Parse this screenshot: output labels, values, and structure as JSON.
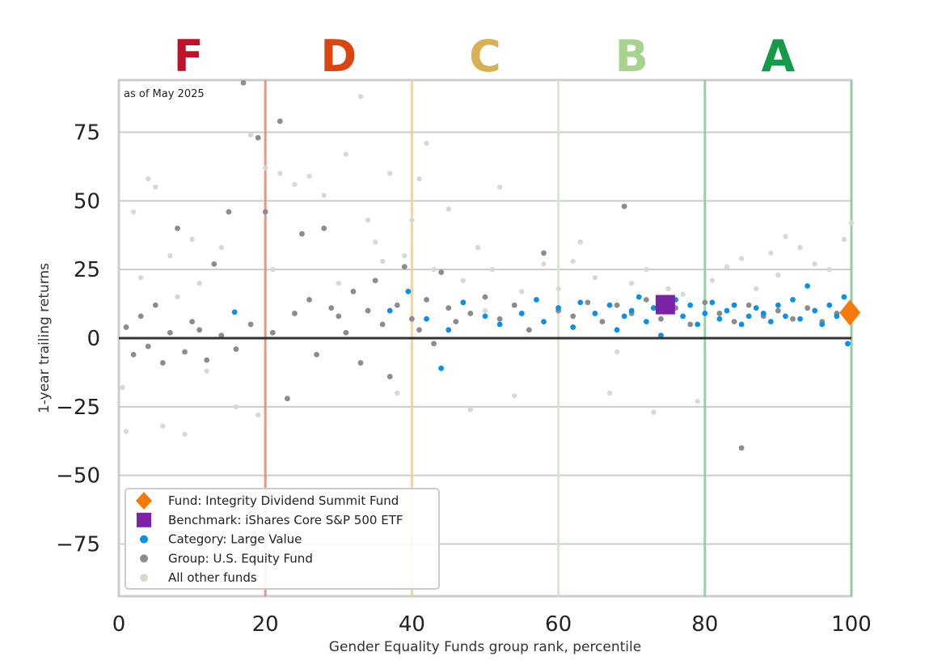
{
  "chart_data": {
    "type": "scatter",
    "title": "",
    "annotation": "as of May 2025",
    "xlabel": "Gender Equality Funds group rank, percentile",
    "ylabel": "1-year trailing returns",
    "xlim": [
      0,
      100
    ],
    "ylim": [
      -94,
      94
    ],
    "x_ticks": [
      0,
      20,
      40,
      60,
      80,
      100
    ],
    "y_ticks": [
      75,
      50,
      25,
      0,
      -25,
      -50,
      -75
    ],
    "y_tick_labels": [
      "75",
      "50",
      "25",
      "0",
      "−25",
      "−50",
      "−75"
    ],
    "grid": "horizontal",
    "zero_line": true,
    "grade_bands": [
      {
        "label": "F",
        "center": 9.5,
        "boundary": 20,
        "color": "#c0102a",
        "line_color": "#ee8a6c"
      },
      {
        "label": "D",
        "center": 30,
        "boundary": 40,
        "color": "#d9470f",
        "line_color": "#efd09a"
      },
      {
        "label": "C",
        "center": 50,
        "boundary": 60,
        "color": "#d8b155",
        "line_color": "#d3e8c8"
      },
      {
        "label": "B",
        "center": 70,
        "boundary": 80,
        "color": "#a6d48c",
        "line_color": "#8ccc9c"
      },
      {
        "label": "A",
        "center": 90,
        "boundary": 100,
        "color": "#159a48",
        "line_color": "#8ccc9c"
      }
    ],
    "series": [
      {
        "name": "Fund: Integrity Dividend Summit Fund",
        "marker": "diamond",
        "color": "#f57a0a",
        "points": [
          [
            99.8,
            9.3
          ]
        ]
      },
      {
        "name": "Benchmark: iShares Core S&P 500 ETF",
        "marker": "square",
        "color": "#7b22a6",
        "points": [
          [
            74.6,
            12.2
          ]
        ]
      },
      {
        "name": "Category: Large Value",
        "marker": "circle",
        "color": "#0a90e6",
        "points": [
          [
            15.8,
            9.5
          ],
          [
            37,
            10
          ],
          [
            39.5,
            17
          ],
          [
            42,
            7
          ],
          [
            44,
            -11
          ],
          [
            45,
            3
          ],
          [
            47,
            13
          ],
          [
            50,
            8
          ],
          [
            52,
            5
          ],
          [
            55,
            9
          ],
          [
            57,
            14
          ],
          [
            58,
            6
          ],
          [
            60,
            11
          ],
          [
            62,
            4
          ],
          [
            63,
            13
          ],
          [
            65,
            9
          ],
          [
            67,
            12
          ],
          [
            68,
            3
          ],
          [
            69,
            8
          ],
          [
            70,
            10
          ],
          [
            71,
            15
          ],
          [
            72,
            6
          ],
          [
            73,
            11
          ],
          [
            74,
            1
          ],
          [
            76,
            14
          ],
          [
            77,
            8
          ],
          [
            78,
            12
          ],
          [
            79,
            5
          ],
          [
            80,
            9
          ],
          [
            81,
            13
          ],
          [
            82,
            7
          ],
          [
            83,
            10
          ],
          [
            84,
            12
          ],
          [
            85,
            5
          ],
          [
            86,
            8
          ],
          [
            87,
            11
          ],
          [
            88,
            9
          ],
          [
            89,
            6
          ],
          [
            90,
            12
          ],
          [
            91,
            8
          ],
          [
            92,
            14
          ],
          [
            93,
            7
          ],
          [
            94,
            19
          ],
          [
            95,
            10
          ],
          [
            96,
            5
          ],
          [
            97,
            12
          ],
          [
            98,
            8
          ],
          [
            99,
            15
          ],
          [
            99.5,
            -2
          ]
        ]
      },
      {
        "name": "Group: U.S. Equity Fund",
        "marker": "circle",
        "color": "#8c8c8c",
        "points": [
          [
            1,
            4
          ],
          [
            2,
            -6
          ],
          [
            3,
            8
          ],
          [
            4,
            -3
          ],
          [
            5,
            12
          ],
          [
            6,
            -9
          ],
          [
            7,
            2
          ],
          [
            8,
            40
          ],
          [
            9,
            -5
          ],
          [
            10,
            6
          ],
          [
            11,
            3
          ],
          [
            12,
            -8
          ],
          [
            13,
            27
          ],
          [
            14,
            1
          ],
          [
            15,
            46
          ],
          [
            16,
            -4
          ],
          [
            17,
            93
          ],
          [
            18,
            5
          ],
          [
            19,
            73
          ],
          [
            20,
            46
          ],
          [
            21,
            2
          ],
          [
            22,
            79
          ],
          [
            23,
            -22
          ],
          [
            24,
            9
          ],
          [
            25,
            38
          ],
          [
            26,
            14
          ],
          [
            27,
            -6
          ],
          [
            28,
            40
          ],
          [
            29,
            11
          ],
          [
            30,
            8
          ],
          [
            31,
            2
          ],
          [
            32,
            17
          ],
          [
            33,
            -9
          ],
          [
            34,
            10
          ],
          [
            35,
            21
          ],
          [
            36,
            5
          ],
          [
            37,
            -14
          ],
          [
            38,
            12
          ],
          [
            39,
            26
          ],
          [
            40,
            7
          ],
          [
            41,
            3
          ],
          [
            42,
            14
          ],
          [
            43,
            -2
          ],
          [
            44,
            24
          ],
          [
            45,
            11
          ],
          [
            46,
            6
          ],
          [
            47,
            13
          ],
          [
            48,
            9
          ],
          [
            50,
            15
          ],
          [
            52,
            7
          ],
          [
            54,
            12
          ],
          [
            56,
            3
          ],
          [
            58,
            31
          ],
          [
            60,
            10
          ],
          [
            62,
            8
          ],
          [
            64,
            13
          ],
          [
            66,
            6
          ],
          [
            68,
            12
          ],
          [
            69,
            48
          ],
          [
            70,
            9
          ],
          [
            72,
            14
          ],
          [
            74,
            7
          ],
          [
            76,
            11
          ],
          [
            78,
            5
          ],
          [
            80,
            13
          ],
          [
            82,
            9
          ],
          [
            84,
            6
          ],
          [
            85,
            -40
          ],
          [
            86,
            12
          ],
          [
            88,
            8
          ],
          [
            90,
            10
          ],
          [
            92,
            7
          ],
          [
            94,
            11
          ],
          [
            96,
            6
          ],
          [
            98,
            9
          ]
        ]
      },
      {
        "name": "All other funds",
        "marker": "circle",
        "color": "#d6dbd2",
        "points": [
          [
            0.5,
            -18
          ],
          [
            1,
            -34
          ],
          [
            2,
            46
          ],
          [
            3,
            22
          ],
          [
            4,
            58
          ],
          [
            5,
            55
          ],
          [
            6,
            -32
          ],
          [
            7,
            30
          ],
          [
            8,
            15
          ],
          [
            9,
            -35
          ],
          [
            10,
            36
          ],
          [
            11,
            20
          ],
          [
            12,
            -12
          ],
          [
            14,
            33
          ],
          [
            16,
            -25
          ],
          [
            18,
            74
          ],
          [
            19,
            -28
          ],
          [
            20,
            62
          ],
          [
            21,
            25
          ],
          [
            22,
            60
          ],
          [
            24,
            56
          ],
          [
            26,
            59
          ],
          [
            28,
            52
          ],
          [
            30,
            20
          ],
          [
            31,
            67
          ],
          [
            33,
            88
          ],
          [
            34,
            43
          ],
          [
            35,
            35
          ],
          [
            36,
            28
          ],
          [
            37,
            60
          ],
          [
            38,
            -20
          ],
          [
            39,
            30
          ],
          [
            40,
            43
          ],
          [
            41,
            58
          ],
          [
            42,
            71
          ],
          [
            43,
            25
          ],
          [
            45,
            47
          ],
          [
            47,
            21
          ],
          [
            48,
            -26
          ],
          [
            49,
            33
          ],
          [
            50,
            10
          ],
          [
            51,
            25
          ],
          [
            52,
            55
          ],
          [
            54,
            -21
          ],
          [
            55,
            17
          ],
          [
            58,
            27
          ],
          [
            60,
            18
          ],
          [
            62,
            28
          ],
          [
            63,
            35
          ],
          [
            65,
            22
          ],
          [
            67,
            -20
          ],
          [
            68,
            -5
          ],
          [
            70,
            20
          ],
          [
            72,
            25
          ],
          [
            73,
            -27
          ],
          [
            75,
            18
          ],
          [
            77,
            16
          ],
          [
            79,
            -23
          ],
          [
            81,
            21
          ],
          [
            83,
            26
          ],
          [
            85,
            29
          ],
          [
            87,
            18
          ],
          [
            89,
            31
          ],
          [
            90,
            23
          ],
          [
            91,
            37
          ],
          [
            93,
            33
          ],
          [
            95,
            27
          ],
          [
            97,
            25
          ],
          [
            99,
            36
          ],
          [
            100,
            42
          ]
        ]
      }
    ]
  }
}
